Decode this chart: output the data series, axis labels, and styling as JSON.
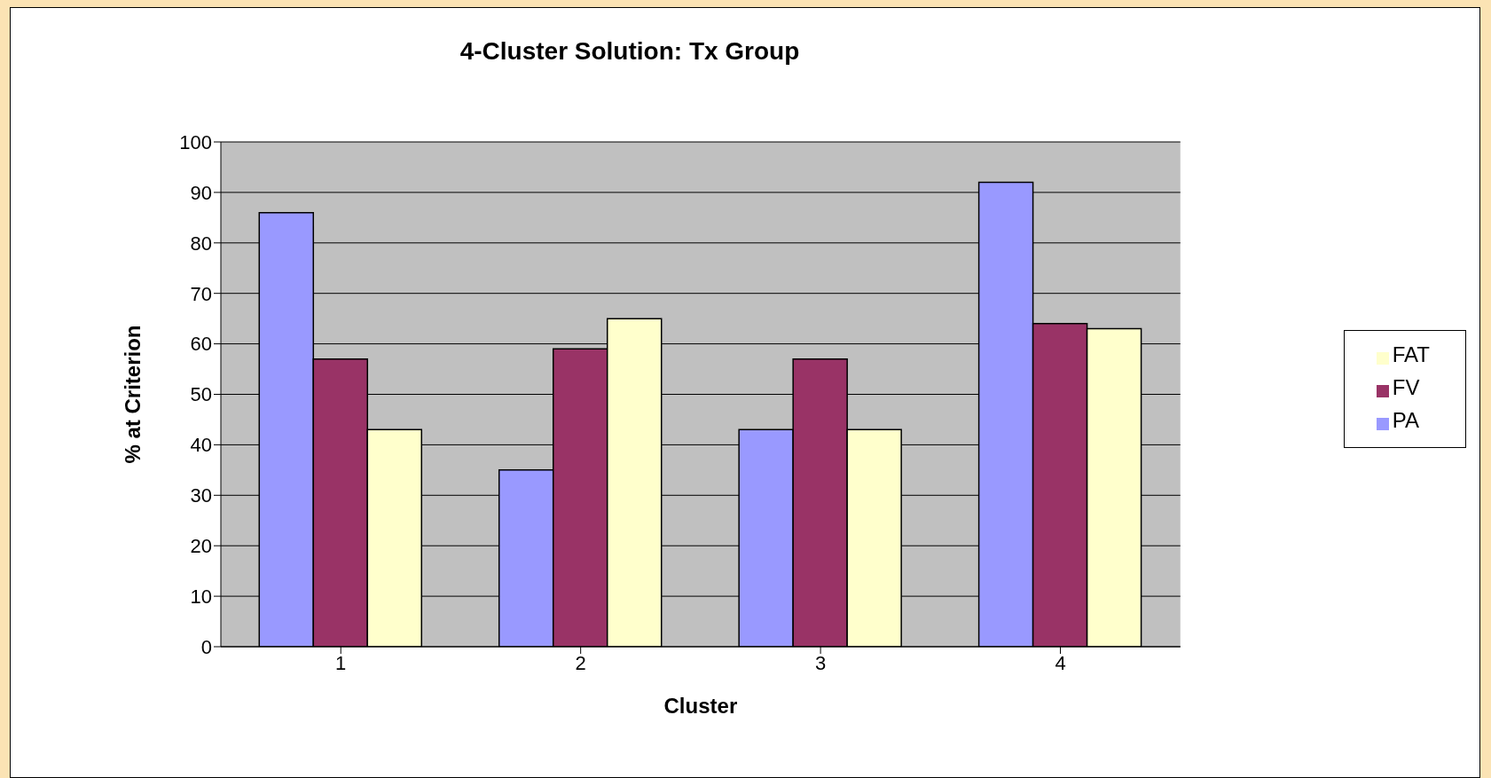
{
  "chart_data": {
    "type": "bar",
    "title": "4-Cluster Solution: Tx Group",
    "xlabel": "Cluster",
    "ylabel": "% at Criterion",
    "categories": [
      "1",
      "2",
      "3",
      "4"
    ],
    "series": [
      {
        "name": "PA",
        "color": "#9999ff",
        "values": [
          86,
          35,
          43,
          92
        ]
      },
      {
        "name": "FV",
        "color": "#993366",
        "values": [
          57,
          59,
          57,
          64
        ]
      },
      {
        "name": "FAT",
        "color": "#ffffcc",
        "values": [
          43,
          65,
          43,
          63
        ]
      }
    ],
    "ylim": [
      0,
      100
    ],
    "yticks": [
      0,
      10,
      20,
      30,
      40,
      50,
      60,
      70,
      80,
      90,
      100
    ],
    "grid": "y",
    "legend": "right"
  }
}
